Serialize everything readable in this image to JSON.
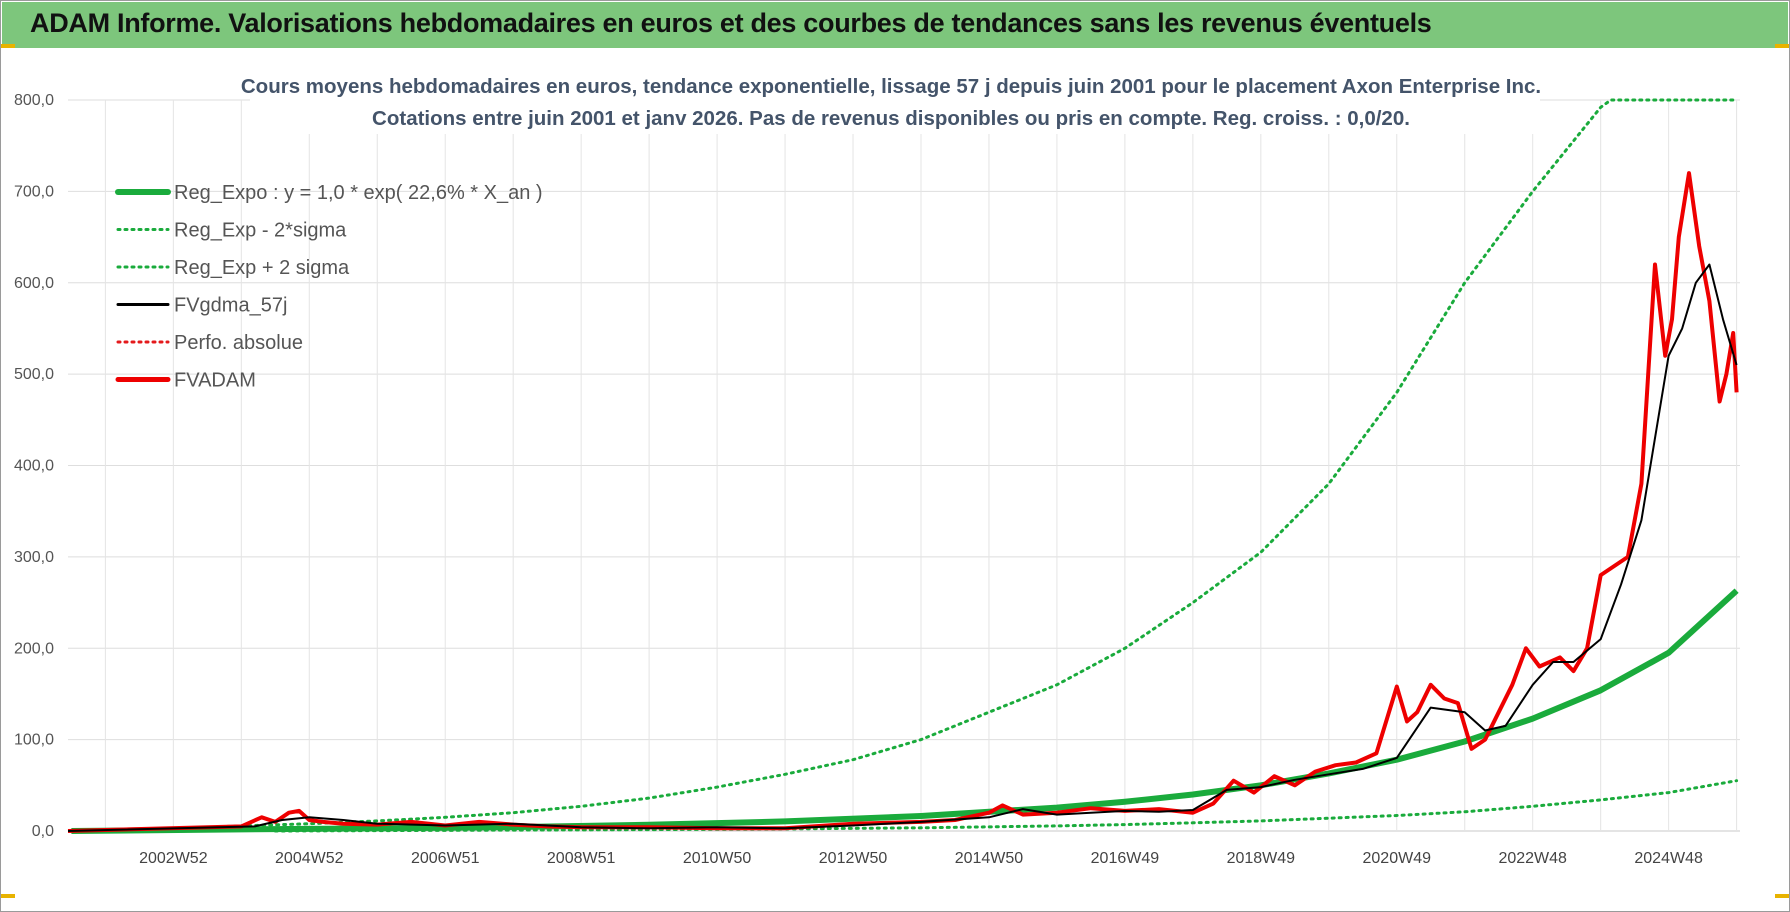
{
  "header": {
    "title": "ADAM Informe. Valorisations hebdomadaires en euros et des courbes de tendances sans les revenus éventuels",
    "background": "#7dc67c"
  },
  "chart_data": {
    "type": "line",
    "title": "Cours moyens hebdomadaires en euros, tendance exponentielle, lissage 57 j depuis juin 2001 pour le placement Axon Enterprise Inc.",
    "subtitle": "Cotations entre juin 2001 et janv 2026.  Pas de revenus disponibles ou pris en compte. Reg. croiss. : 0,0/20.",
    "xlabel": "",
    "ylabel": "",
    "ylim": [
      0,
      800
    ],
    "xlim": [
      2001.45,
      2026.05
    ],
    "yticks": [
      "0,0",
      "100,0",
      "200,0",
      "300,0",
      "400,0",
      "500,0",
      "600,0",
      "700,0",
      "800,0"
    ],
    "xticks": [
      {
        "label": "2002W52",
        "x": 2003.0
      },
      {
        "label": "2004W52",
        "x": 2005.0
      },
      {
        "label": "2006W51",
        "x": 2007.0
      },
      {
        "label": "2008W51",
        "x": 2009.0
      },
      {
        "label": "2010W50",
        "x": 2011.0
      },
      {
        "label": "2012W50",
        "x": 2013.0
      },
      {
        "label": "2014W50",
        "x": 2015.0
      },
      {
        "label": "2016W49",
        "x": 2017.0
      },
      {
        "label": "2018W49",
        "x": 2019.0
      },
      {
        "label": "2020W49",
        "x": 2021.0
      },
      {
        "label": "2022W48",
        "x": 2023.0
      },
      {
        "label": "2024W48",
        "x": 2025.0
      }
    ],
    "grid": true,
    "legend_position": "top-left",
    "series": [
      {
        "name": "Reg_Expo : y = 1,0 * exp( 22,6% *  X_an )",
        "color": "#1aab3c",
        "style": "solid-thick",
        "x": [
          2001.5,
          2004,
          2006,
          2008,
          2010,
          2012,
          2014,
          2016,
          2017,
          2018,
          2019,
          2020,
          2021,
          2022,
          2023,
          2024,
          2025,
          2026
        ],
        "y": [
          0,
          1.8,
          2.8,
          4.3,
          6.8,
          10.5,
          16.4,
          25.6,
          32,
          40,
          50,
          63,
          78,
          98,
          123,
          154,
          195,
          263
        ]
      },
      {
        "name": "Reg_Exp - 2*sigma",
        "color": "#1aab3c",
        "style": "dotted",
        "x": [
          2004.5,
          2008,
          2010,
          2012,
          2014,
          2016,
          2017,
          2018,
          2019,
          2020,
          2021,
          2022,
          2023,
          2024,
          2025,
          2026
        ],
        "y": [
          0,
          1,
          1.5,
          2.3,
          3.5,
          5.6,
          7,
          9,
          11,
          14,
          17,
          21,
          27,
          34,
          42,
          55
        ]
      },
      {
        "name": "Reg_Exp + 2 sigma",
        "color": "#1aab3c",
        "style": "dotted",
        "x": [
          2003.8,
          2005,
          2006,
          2007,
          2008,
          2009,
          2010,
          2011,
          2012,
          2013,
          2014,
          2015,
          2016,
          2017,
          2018,
          2019,
          2020,
          2021,
          2022,
          2023,
          2024,
          2024.15,
          2026
        ],
        "y": [
          5,
          8,
          11,
          15,
          20,
          27,
          36,
          48,
          62,
          78,
          100,
          130,
          160,
          200,
          250,
          305,
          380,
          480,
          600,
          700,
          792,
          800,
          800
        ]
      },
      {
        "name": "FVgdma_57j",
        "color": "#000000",
        "style": "solid",
        "x": [
          2001.45,
          2004.2,
          2004.6,
          2005.0,
          2005.5,
          2006,
          2007,
          2008,
          2009,
          2010,
          2011,
          2012,
          2013,
          2014,
          2015,
          2015.5,
          2016,
          2016.5,
          2017,
          2017.5,
          2018,
          2018.5,
          2019,
          2019.5,
          2020,
          2020.5,
          2021,
          2021.5,
          2022,
          2022.3,
          2022.6,
          2023,
          2023.3,
          2023.6,
          2024,
          2024.3,
          2024.6,
          2025,
          2025.2,
          2025.4,
          2025.6,
          2025.8,
          2026.0
        ],
        "y": [
          0,
          5,
          12,
          15,
          12,
          8,
          6,
          8,
          4,
          3,
          4,
          3,
          6,
          10,
          15,
          24,
          18,
          20,
          22,
          21,
          23,
          45,
          48,
          56,
          62,
          68,
          80,
          135,
          130,
          110,
          115,
          160,
          185,
          185,
          210,
          270,
          340,
          520,
          550,
          600,
          620,
          560,
          510
        ]
      },
      {
        "name": "Perfo. absolue",
        "color": "#e41a1c",
        "style": "dotted",
        "x": [],
        "y": []
      },
      {
        "name": "FVADAM",
        "color": "#ee0000",
        "style": "solid-thick",
        "x": [
          2001.45,
          2004.0,
          2004.3,
          2004.5,
          2004.7,
          2004.85,
          2005.0,
          2005.2,
          2005.5,
          2006,
          2006.5,
          2007,
          2007.5,
          2008,
          2008.5,
          2009,
          2010,
          2011,
          2012,
          2013,
          2014,
          2014.5,
          2015,
          2015.2,
          2015.5,
          2016,
          2016.5,
          2017,
          2017.5,
          2018,
          2018.3,
          2018.6,
          2018.9,
          2019.2,
          2019.5,
          2019.8,
          2020.1,
          2020.4,
          2020.7,
          2021.0,
          2021.15,
          2021.3,
          2021.5,
          2021.7,
          2021.9,
          2022.1,
          2022.3,
          2022.5,
          2022.7,
          2022.9,
          2023.1,
          2023.4,
          2023.6,
          2023.8,
          2024.0,
          2024.2,
          2024.4,
          2024.6,
          2024.8,
          2024.95,
          2025.05,
          2025.15,
          2025.3,
          2025.45,
          2025.6,
          2025.75,
          2025.85,
          2025.95,
          2026.0
        ],
        "y": [
          0,
          5,
          15,
          10,
          20,
          22,
          12,
          10,
          8,
          7,
          10,
          6,
          10,
          7,
          5,
          4,
          4,
          3,
          3,
          8,
          10,
          12,
          20,
          28,
          18,
          20,
          25,
          22,
          24,
          20,
          30,
          55,
          42,
          60,
          50,
          65,
          72,
          75,
          85,
          158,
          120,
          130,
          160,
          145,
          140,
          90,
          100,
          130,
          160,
          200,
          180,
          190,
          175,
          200,
          280,
          290,
          300,
          380,
          620,
          520,
          560,
          650,
          720,
          640,
          580,
          470,
          500,
          545,
          480
        ]
      }
    ]
  }
}
